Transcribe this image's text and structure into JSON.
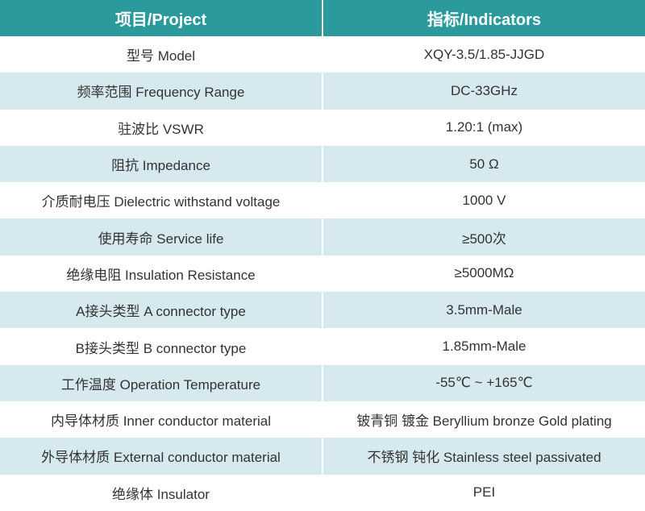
{
  "table": {
    "header": [
      "项目/Project",
      "指标/Indicators"
    ],
    "rows": [
      [
        "型号 Model",
        "XQY-3.5/1.85-JJGD"
      ],
      [
        "频率范围 Frequency Range",
        "DC-33GHz"
      ],
      [
        "驻波比 VSWR",
        "1.20:1 (max)"
      ],
      [
        "阻抗 Impedance",
        "50 Ω"
      ],
      [
        "介质耐电压 Dielectric withstand voltage",
        "1000 V"
      ],
      [
        "使用寿命 Service life",
        "≥500次"
      ],
      [
        "绝缘电阻 Insulation Resistance",
        "≥5000MΩ"
      ],
      [
        "A接头类型 A connector type",
        "3.5mm-Male"
      ],
      [
        "B接头类型 B connector type",
        "1.85mm-Male"
      ],
      [
        "工作温度 Operation Temperature",
        "-55℃ ~ +165℃"
      ],
      [
        "内导体材质 Inner conductor material",
        "铍青铜 镀金 Beryllium bronze Gold plating"
      ],
      [
        "外导体材质 External conductor material",
        "不锈钢 钝化 Stainless steel passivated"
      ],
      [
        "绝缘体 Insulator",
        "PEI"
      ]
    ]
  }
}
